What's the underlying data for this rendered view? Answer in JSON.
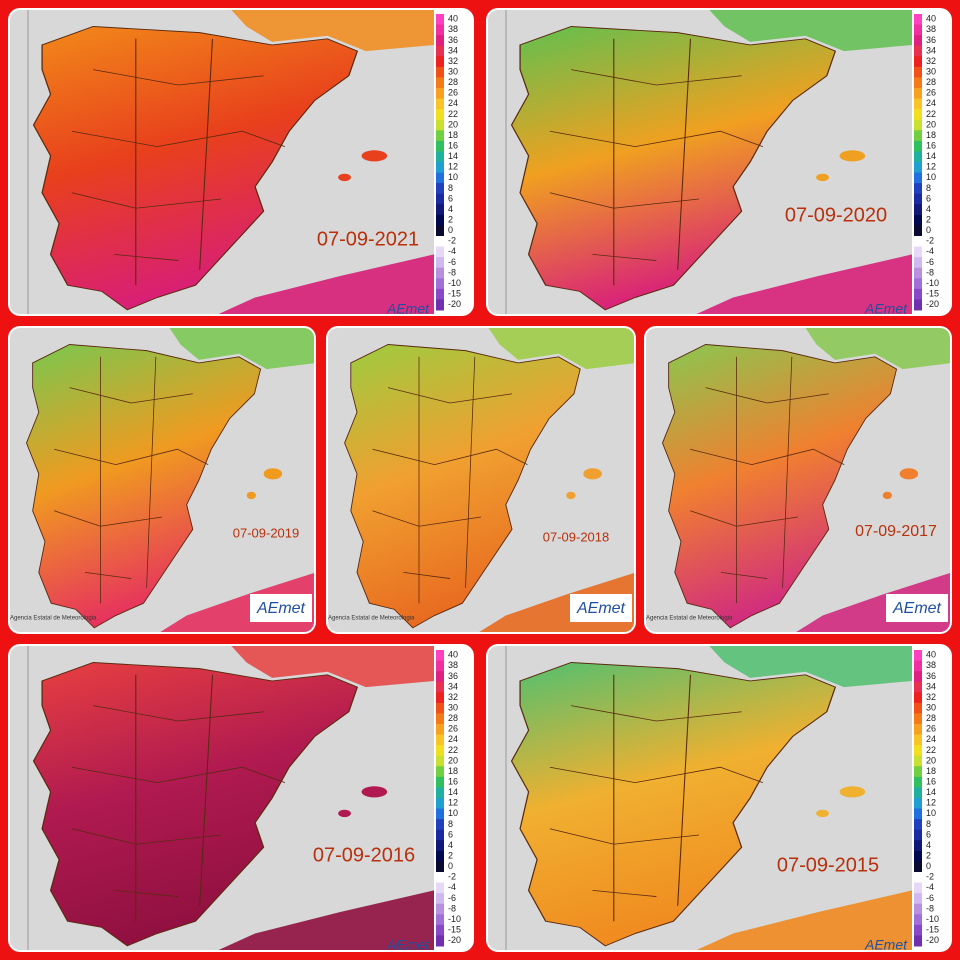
{
  "panels": [
    {
      "date": "07-09-2021"
    },
    {
      "date": "07-09-2020"
    },
    {
      "date": "07-09-2019"
    },
    {
      "date": "07-09-2018"
    },
    {
      "date": "07-09-2017"
    },
    {
      "date": "07-09-2016"
    },
    {
      "date": "07-09-2015"
    }
  ],
  "colorbar": {
    "labels": [
      40,
      38,
      36,
      34,
      32,
      30,
      28,
      26,
      24,
      22,
      20,
      18,
      16,
      14,
      12,
      10,
      8,
      6,
      4,
      2,
      0,
      -2,
      -4,
      -6,
      -8,
      -10,
      -15,
      -20
    ]
  },
  "logo": "AEmet",
  "agency": "Agencia Estatal de Meteorologia"
}
